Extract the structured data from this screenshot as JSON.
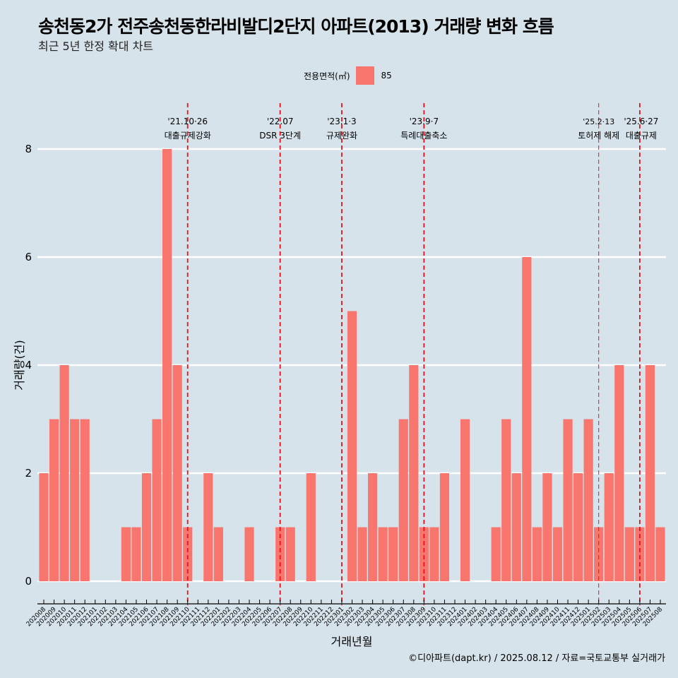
{
  "header": {
    "title": "송천동2가 전주송천동한라비발디2단지 아파트(2013) 거래량 변화 흐름",
    "subtitle": "최근 5년 한정 확대 차트"
  },
  "legend": {
    "title": "전용면적(㎡)",
    "items": [
      {
        "label": "85",
        "color": "#f8766d"
      }
    ]
  },
  "caption": "©디아파트(dapt.kr) / 2025.08.12 / 자료=국토교통부 실거래가",
  "colors": {
    "background": "#d6e3ea",
    "bar": "#f8766d",
    "grid": "#ffffff",
    "event_line": "#e8121e"
  },
  "chart_data": {
    "type": "bar",
    "title": "송천동2가 전주송천동한라비발디2단지 아파트(2013) 거래량 변화 흐름",
    "subtitle": "최근 5년 한정 확대 차트",
    "xlabel": "거래년월",
    "ylabel": "거래량(건)",
    "ylim": [
      0,
      8
    ],
    "yticks": [
      0,
      2,
      4,
      6,
      8
    ],
    "grid": true,
    "legend_position": "top",
    "categories": [
      "202008",
      "202009",
      "202010",
      "202011",
      "202012",
      "202101",
      "202102",
      "202103",
      "202104",
      "202105",
      "202106",
      "202107",
      "202108",
      "202109",
      "202110",
      "202111",
      "202112",
      "202201",
      "202202",
      "202203",
      "202204",
      "202205",
      "202206",
      "202207",
      "202208",
      "202209",
      "202210",
      "202211",
      "202212",
      "202301",
      "202302",
      "202303",
      "202304",
      "202305",
      "202306",
      "202307",
      "202308",
      "202309",
      "202310",
      "202311",
      "202312",
      "202401",
      "202402",
      "202403",
      "202404",
      "202405",
      "202406",
      "202407",
      "202408",
      "202409",
      "202410",
      "202411",
      "202412",
      "202501",
      "202502",
      "202503",
      "202504",
      "202505",
      "202506",
      "202507",
      "202508"
    ],
    "series": [
      {
        "name": "85",
        "values": [
          2,
          3,
          4,
          3,
          3,
          0,
          0,
          0,
          1,
          1,
          2,
          3,
          8,
          4,
          1,
          0,
          2,
          1,
          0,
          0,
          1,
          0,
          0,
          1,
          1,
          0,
          2,
          0,
          0,
          0,
          5,
          1,
          2,
          1,
          1,
          3,
          4,
          1,
          1,
          2,
          0,
          3,
          0,
          0,
          1,
          3,
          2,
          6,
          1,
          2,
          1,
          3,
          2,
          3,
          1,
          2,
          4,
          1,
          1,
          4,
          1
        ]
      }
    ],
    "annotations": [
      {
        "category": "202110",
        "date": "'21.10·26",
        "label": "대출규제강화",
        "style": "bold"
      },
      {
        "category": "202207",
        "date": "'22.07",
        "label": "DSR 3단계",
        "style": "bold"
      },
      {
        "category": "202301",
        "date": "'23.1·3",
        "label": "규제완화",
        "style": "bold"
      },
      {
        "category": "202309",
        "date": "'23.9·7",
        "label": "특례대출축소",
        "style": "bold"
      },
      {
        "category": "202502",
        "date": "'25.2·13",
        "label": "토허제 해제",
        "style": "thin"
      },
      {
        "category": "202506",
        "date": "'25.6·27",
        "label": "대출규제",
        "style": "bold"
      }
    ]
  }
}
